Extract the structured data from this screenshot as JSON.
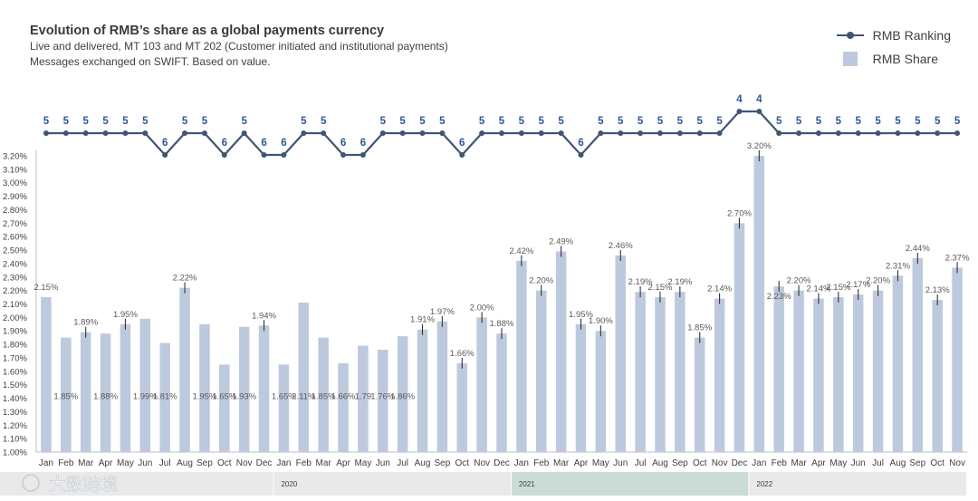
{
  "header": {
    "title": "Evolution of RMB’s share as a global payments currency",
    "subtitle_1": "Live and delivered, MT 103 and MT 202 (Customer initiated and institutional payments)",
    "subtitle_2": "Messages exchanged on SWIFT. Based on value."
  },
  "legend": {
    "ranking": "RMB Ranking",
    "share": "RMB Share"
  },
  "watermark": "大数跨境",
  "colors": {
    "bar": "#bdc9dd",
    "line": "#3f5673",
    "rank_text": "#2e5597",
    "year_2021": "#c9dcd6",
    "year_other": "#e9e9e9"
  },
  "chart_data": {
    "type": "bar",
    "title": "Evolution of RMB’s share as a global payments currency",
    "ylim": [
      1.0,
      3.2
    ],
    "yticks": [
      "1.00%",
      "1.10%",
      "1.20%",
      "1.30%",
      "1.40%",
      "1.50%",
      "1.60%",
      "1.70%",
      "1.80%",
      "1.90%",
      "2.00%",
      "2.10%",
      "2.20%",
      "2.30%",
      "2.40%",
      "2.50%",
      "2.60%",
      "2.70%",
      "2.80%",
      "2.90%",
      "3.00%",
      "3.10%",
      "3.20%"
    ],
    "categories": [
      "Jan",
      "Feb",
      "Mar",
      "Apr",
      "May",
      "Jun",
      "Jul",
      "Aug",
      "Sep",
      "Oct",
      "Nov",
      "Dec",
      "Jan",
      "Feb",
      "Mar",
      "Apr",
      "May",
      "Jun",
      "Jul",
      "Aug",
      "Sep",
      "Oct",
      "Nov",
      "Dec",
      "Jan",
      "Feb",
      "Mar",
      "Apr",
      "May",
      "Jun",
      "Jul",
      "Aug",
      "Sep",
      "Oct",
      "Nov",
      "Dec",
      "Jan",
      "Feb",
      "Mar",
      "Apr",
      "May",
      "Jun",
      "Jul",
      "Aug",
      "Sep",
      "Oct",
      "Nov"
    ],
    "years": [
      {
        "label": "",
        "start": 0,
        "count": 12
      },
      {
        "label": "2020",
        "start": 12,
        "count": 12
      },
      {
        "label": "2021",
        "start": 24,
        "count": 12
      },
      {
        "label": "2022",
        "start": 36,
        "count": 11
      }
    ],
    "series": [
      {
        "name": "RMB Share",
        "values": [
          2.15,
          1.85,
          1.89,
          1.88,
          1.95,
          1.99,
          1.81,
          2.22,
          1.95,
          1.65,
          1.93,
          1.94,
          1.65,
          2.11,
          1.85,
          1.66,
          1.79,
          1.76,
          1.86,
          1.91,
          1.97,
          1.66,
          2.0,
          1.88,
          2.42,
          2.2,
          2.49,
          1.95,
          1.9,
          2.46,
          2.19,
          2.15,
          2.19,
          1.85,
          2.14,
          2.7,
          3.2,
          2.23,
          2.2,
          2.14,
          2.15,
          2.17,
          2.2,
          2.31,
          2.44,
          2.13,
          2.37
        ],
        "labels": [
          "2.15%",
          "1.85%",
          "1.89%",
          "1.88%",
          "1.95%",
          "1.99%",
          "1.81%",
          "2.22%",
          "1.95%",
          "1.65%",
          "1.93%",
          "1.94%",
          "1.65%",
          "2.11%",
          "1.85%",
          "1.66%",
          "1.79",
          "1.76%",
          "1.86%",
          "1.91%",
          "1.97%",
          "1.66%",
          "2.00%",
          "1.88%",
          "2.42%",
          "2.20%",
          "2.49%",
          "1.95%",
          "1.90%",
          "2.46%",
          "2.19%",
          "2.15%",
          "2.19%",
          "1.85%",
          "2.14%",
          "2.70%",
          "3.20%",
          "2.23%",
          "2.20%",
          "2.14%",
          "2.15%",
          "2.17%",
          "2.20%",
          "2.31%",
          "2.44%",
          "2.13%",
          "2.37%"
        ],
        "label_pos": [
          "top",
          "mid",
          "top",
          "mid",
          "top",
          "mid",
          "mid",
          "top",
          "mid",
          "mid",
          "mid",
          "top",
          "mid",
          "mid",
          "mid",
          "mid",
          "mid",
          "mid",
          "mid",
          "top",
          "top",
          "top",
          "top",
          "top",
          "top",
          "top",
          "top",
          "top",
          "top",
          "top",
          "top",
          "top",
          "top",
          "top",
          "top",
          "top",
          "top",
          "below",
          "top",
          "top",
          "top",
          "top",
          "top",
          "top",
          "top",
          "top",
          "top"
        ],
        "error_bars": [
          false,
          false,
          true,
          false,
          true,
          false,
          false,
          true,
          false,
          false,
          false,
          true,
          false,
          false,
          false,
          false,
          false,
          false,
          false,
          true,
          true,
          true,
          true,
          true,
          true,
          true,
          true,
          true,
          true,
          true,
          true,
          true,
          true,
          true,
          true,
          true,
          true,
          true,
          true,
          true,
          true,
          true,
          true,
          true,
          true,
          true,
          true
        ]
      },
      {
        "name": "RMB Ranking",
        "values": [
          5,
          5,
          5,
          5,
          5,
          5,
          6,
          5,
          5,
          6,
          5,
          6,
          6,
          5,
          5,
          6,
          6,
          5,
          5,
          5,
          5,
          6,
          5,
          5,
          5,
          5,
          5,
          6,
          5,
          5,
          5,
          5,
          5,
          5,
          5,
          4,
          4,
          5,
          5,
          5,
          5,
          5,
          5,
          5,
          5,
          5,
          5
        ]
      }
    ]
  }
}
